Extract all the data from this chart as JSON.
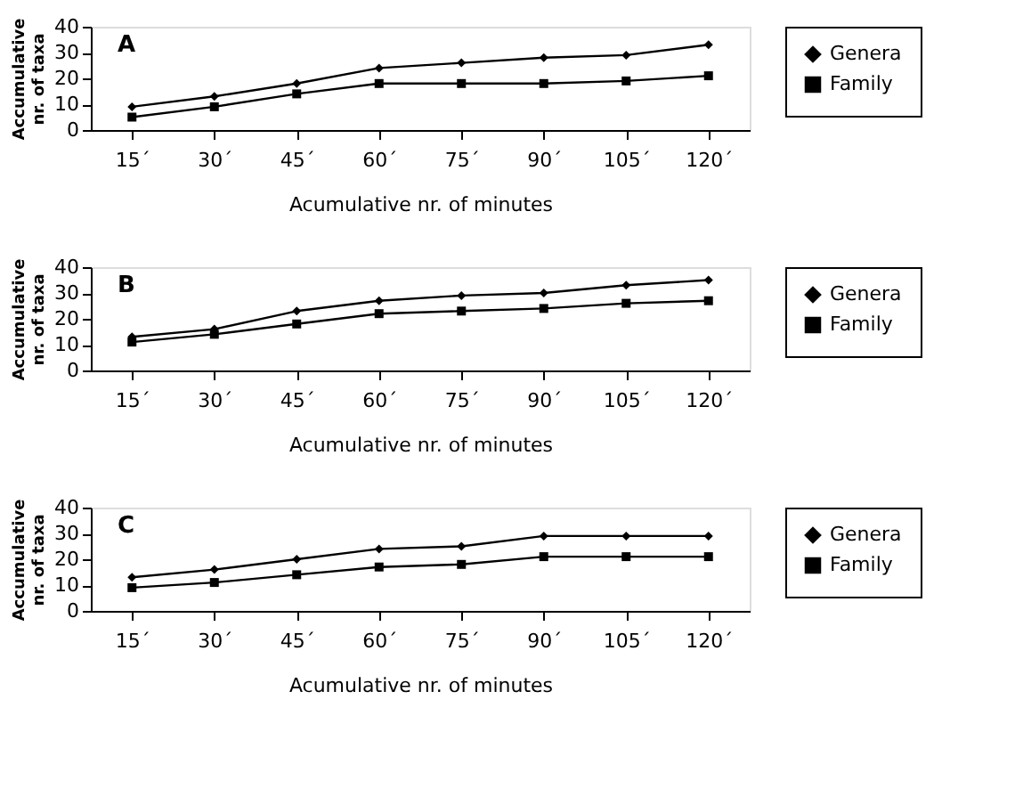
{
  "chart_data": [
    {
      "type": "line",
      "title": "A",
      "xlabel": "Acumulative nr. of minutes",
      "ylabel": "Accumulative\nnr. of taxa",
      "categories": [
        "15´",
        "30´",
        "45´",
        "60´",
        "75´",
        "90´",
        "105´",
        "120´"
      ],
      "ylim": [
        0,
        40
      ],
      "yticks": [
        0,
        10,
        20,
        30,
        40
      ],
      "grid": false,
      "legend": "right",
      "series": [
        {
          "name": "Genera",
          "color": "#000000",
          "marker": "diamond",
          "values": [
            9,
            13,
            18,
            24,
            26,
            28,
            29,
            33
          ]
        },
        {
          "name": "Family",
          "color": "#000000",
          "marker": "square",
          "values": [
            5,
            9,
            14,
            18,
            18,
            18,
            19,
            21
          ]
        }
      ]
    },
    {
      "type": "line",
      "title": "B",
      "xlabel": "Acumulative nr. of minutes",
      "ylabel": "Accumulative\nnr. of taxa",
      "categories": [
        "15´",
        "30´",
        "45´",
        "60´",
        "75´",
        "90´",
        "105´",
        "120´"
      ],
      "ylim": [
        0,
        40
      ],
      "yticks": [
        0,
        10,
        20,
        30,
        40
      ],
      "grid": false,
      "legend": "right",
      "series": [
        {
          "name": "Genera",
          "color": "#000000",
          "marker": "diamond",
          "values": [
            13,
            16,
            23,
            27,
            29,
            30,
            33,
            35
          ]
        },
        {
          "name": "Family",
          "color": "#000000",
          "marker": "square",
          "values": [
            11,
            14,
            18,
            22,
            23,
            24,
            26,
            27
          ]
        }
      ]
    },
    {
      "type": "line",
      "title": "C",
      "xlabel": "Acumulative nr. of minutes",
      "ylabel": "Accumulative\nnr. of taxa",
      "categories": [
        "15´",
        "30´",
        "45´",
        "60´",
        "75´",
        "90´",
        "105´",
        "120´"
      ],
      "ylim": [
        0,
        40
      ],
      "yticks": [
        0,
        10,
        20,
        30,
        40
      ],
      "grid": false,
      "legend": "right",
      "series": [
        {
          "name": "Genera",
          "color": "#000000",
          "marker": "diamond",
          "values": [
            13,
            16,
            20,
            24,
            25,
            29,
            29,
            29
          ]
        },
        {
          "name": "Family",
          "color": "#000000",
          "marker": "square",
          "values": [
            9,
            11,
            14,
            17,
            18,
            21,
            21,
            21
          ]
        }
      ]
    }
  ]
}
